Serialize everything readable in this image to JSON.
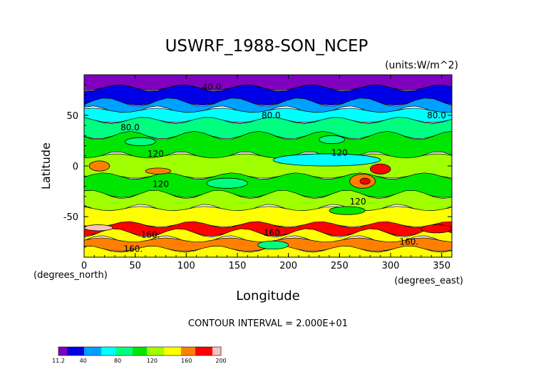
{
  "chart_data": {
    "type": "heatmap",
    "title": "USWRF_1988-SON_NCEP",
    "units": "(units:W/m^2)",
    "xlabel": "Longitude",
    "ylabel": "Latitude",
    "x_unit_note": "(degrees_east)",
    "y_unit_note": "(degrees_north)",
    "xlim": [
      0,
      360
    ],
    "ylim": [
      -90,
      90
    ],
    "x_ticks": [
      0,
      50,
      100,
      150,
      200,
      250,
      300,
      350
    ],
    "y_ticks": [
      -50,
      0,
      50
    ],
    "contour_interval_text": "CONTOUR INTERVAL = 2.000E+01",
    "contour_labels": [
      {
        "text": "40.0",
        "lon": 125,
        "lat": 78
      },
      {
        "text": "80.0",
        "lon": 183,
        "lat": 50
      },
      {
        "text": "80.0",
        "lon": 345,
        "lat": 50
      },
      {
        "text": "80.0",
        "lon": 45,
        "lat": 38
      },
      {
        "text": "120",
        "lon": 70,
        "lat": 12
      },
      {
        "text": "120",
        "lon": 250,
        "lat": 13
      },
      {
        "text": "120",
        "lon": 75,
        "lat": -18
      },
      {
        "text": "120",
        "lon": 268,
        "lat": -35
      },
      {
        "text": "160.",
        "lon": 65,
        "lat": -68
      },
      {
        "text": "160.",
        "lon": 185,
        "lat": -66
      },
      {
        "text": "160.",
        "lon": 318,
        "lat": -75
      },
      {
        "text": "160.",
        "lon": 48,
        "lat": -82
      }
    ],
    "colorbar": {
      "min": 11.2,
      "max": 200,
      "tick_labels": [
        "11.2",
        "40",
        "80",
        "120",
        "160",
        "200"
      ],
      "tick_values": [
        11.2,
        40,
        80,
        120,
        160,
        200
      ],
      "colors": [
        "#7f00bf",
        "#0000e6",
        "#00a0ff",
        "#00ffff",
        "#00ff80",
        "#00e600",
        "#a0ff00",
        "#ffff00",
        "#ff8000",
        "#ff0000",
        "#ffc0c0"
      ]
    },
    "bands": [
      {
        "lat_from": 90,
        "lat_to": 77,
        "color": "#7f00bf"
      },
      {
        "lat_from": 77,
        "lat_to": 63,
        "color": "#0000e6"
      },
      {
        "lat_from": 63,
        "lat_to": 55,
        "color": "#00a0ff"
      },
      {
        "lat_from": 55,
        "lat_to": 45,
        "color": "#00ffff"
      },
      {
        "lat_from": 45,
        "lat_to": 30,
        "color": "#00ff80"
      },
      {
        "lat_from": 30,
        "lat_to": 10,
        "color": "#00e600"
      },
      {
        "lat_from": 10,
        "lat_to": -10,
        "color": "#a0ff00"
      },
      {
        "lat_from": -10,
        "lat_to": -28,
        "color": "#00e600"
      },
      {
        "lat_from": -28,
        "lat_to": -42,
        "color": "#a0ff00"
      },
      {
        "lat_from": -42,
        "lat_to": -58,
        "color": "#ffff00"
      },
      {
        "lat_from": -58,
        "lat_to": -66,
        "color": "#ff0000"
      },
      {
        "lat_from": -66,
        "lat_to": -73,
        "color": "#ffff00"
      },
      {
        "lat_from": -73,
        "lat_to": -82,
        "color": "#ff8000"
      },
      {
        "lat_from": -82,
        "lat_to": -90,
        "color": "#ffff00"
      }
    ],
    "patches": [
      {
        "lon": [
          5,
          25
        ],
        "lat": [
          5,
          -5
        ],
        "color": "#ff8000"
      },
      {
        "lon": [
          60,
          85
        ],
        "lat": [
          -2,
          -8
        ],
        "color": "#ff8000"
      },
      {
        "lon": [
          280,
          300
        ],
        "lat": [
          2,
          -8
        ],
        "color": "#ff0000"
      },
      {
        "lon": [
          260,
          285
        ],
        "lat": [
          -8,
          -22
        ],
        "color": "#ff8000"
      },
      {
        "lon": [
          270,
          280
        ],
        "lat": [
          -12,
          -18
        ],
        "color": "#ff0000"
      },
      {
        "lon": [
          330,
          360
        ],
        "lat": [
          -58,
          -66
        ],
        "color": "#ff0000"
      },
      {
        "lon": [
          0,
          28
        ],
        "lat": [
          -58,
          -64
        ],
        "color": "#ffc0c0"
      },
      {
        "lon": [
          170,
          200
        ],
        "lat": [
          -74,
          -82
        ],
        "color": "#00ff80"
      },
      {
        "lon": [
          185,
          290
        ],
        "lat": [
          12,
          0
        ],
        "color": "#00ffff"
      },
      {
        "lon": [
          230,
          255
        ],
        "lat": [
          30,
          22
        ],
        "color": "#00ff80"
      },
      {
        "lon": [
          40,
          70
        ],
        "lat": [
          28,
          20
        ],
        "color": "#00ff80"
      },
      {
        "lon": [
          120,
          160
        ],
        "lat": [
          -12,
          -22
        ],
        "color": "#00ff80"
      },
      {
        "lon": [
          240,
          275
        ],
        "lat": [
          -40,
          -48
        ],
        "color": "#00e600"
      }
    ]
  }
}
